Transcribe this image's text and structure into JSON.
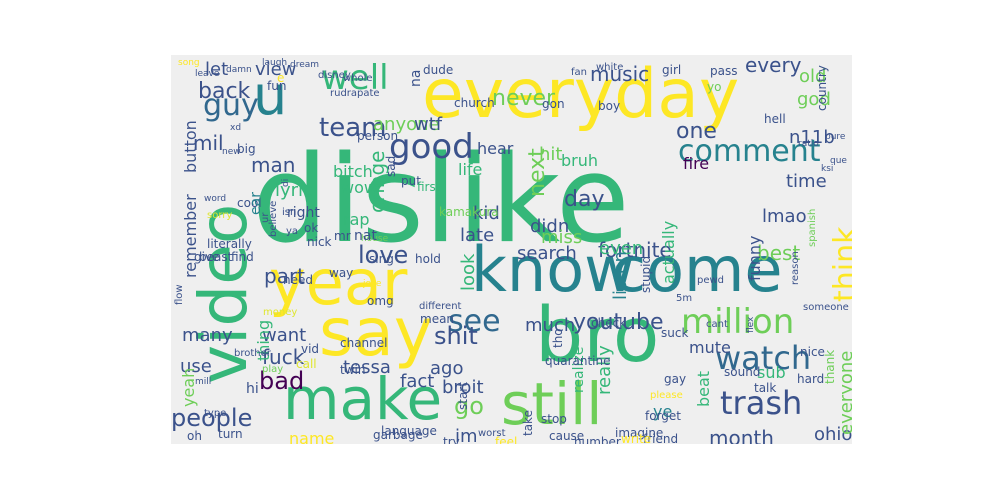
{
  "wordcloud": {
    "colors": {
      "purple": "#440154",
      "indigo": "#3b528b",
      "blue": "#31688e",
      "teal": "#26828e",
      "green": "#35b779",
      "lime": "#6ece58",
      "yellow": "#c9dd1f",
      "bright": "#fde725",
      "pale": "#dfe62f"
    },
    "words": [
      {
        "text": "dislike"
      },
      {
        "text": "everyday"
      },
      {
        "text": "video"
      },
      {
        "text": "know"
      },
      {
        "text": "come"
      },
      {
        "text": "year"
      },
      {
        "text": "bro"
      },
      {
        "text": "say"
      },
      {
        "text": "make"
      },
      {
        "text": "still"
      },
      {
        "text": "u"
      },
      {
        "text": "well"
      },
      {
        "text": "guy"
      },
      {
        "text": "good"
      },
      {
        "text": "comment"
      },
      {
        "text": "million"
      },
      {
        "text": "watch"
      },
      {
        "text": "trash"
      },
      {
        "text": "think"
      },
      {
        "text": "team"
      },
      {
        "text": "back"
      },
      {
        "text": "see"
      },
      {
        "text": "bad"
      },
      {
        "text": "people"
      },
      {
        "text": "love"
      },
      {
        "text": "shit"
      },
      {
        "text": "youtube"
      },
      {
        "text": "go"
      },
      {
        "text": "month"
      },
      {
        "text": "never"
      },
      {
        "text": "music"
      },
      {
        "text": "every"
      },
      {
        "text": "one"
      },
      {
        "text": "n11b"
      },
      {
        "text": "old"
      },
      {
        "text": "god"
      },
      {
        "text": "fortnite"
      },
      {
        "text": "best"
      },
      {
        "text": "time"
      },
      {
        "text": "lmao"
      },
      {
        "text": "mil"
      },
      {
        "text": "man"
      },
      {
        "text": "lyric"
      },
      {
        "text": "cringe"
      },
      {
        "text": "view"
      },
      {
        "text": "let"
      },
      {
        "text": "anyone"
      },
      {
        "text": "wtf"
      },
      {
        "text": "next"
      },
      {
        "text": "day"
      },
      {
        "text": "kid"
      },
      {
        "text": "search"
      },
      {
        "text": "even"
      },
      {
        "text": "listen"
      },
      {
        "text": "fuck"
      },
      {
        "text": "part"
      },
      {
        "text": "wow"
      },
      {
        "text": "rap"
      },
      {
        "text": "look"
      },
      {
        "text": "didn"
      },
      {
        "text": "late"
      },
      {
        "text": "much"
      },
      {
        "text": "mute"
      },
      {
        "text": "sub"
      },
      {
        "text": "ohio"
      },
      {
        "text": "ago"
      },
      {
        "text": "tessa"
      },
      {
        "text": "broit"
      },
      {
        "text": "fact"
      },
      {
        "text": "im"
      },
      {
        "text": "really"
      },
      {
        "text": "beat"
      },
      {
        "text": "everyone"
      },
      {
        "text": "use"
      },
      {
        "text": "many"
      },
      {
        "text": "want"
      },
      {
        "text": "thing"
      },
      {
        "text": "remember"
      },
      {
        "text": "button"
      },
      {
        "text": "actually"
      },
      {
        "text": "funny"
      },
      {
        "text": "miss"
      },
      {
        "text": "hit"
      },
      {
        "text": "fire"
      },
      {
        "text": "bruh"
      },
      {
        "text": "hear"
      },
      {
        "text": "bitch"
      },
      {
        "text": "life"
      },
      {
        "text": "name"
      },
      {
        "text": "yeah"
      },
      {
        "text": "ye"
      },
      {
        "text": "realize"
      },
      {
        "text": "na"
      },
      {
        "text": "dude"
      },
      {
        "text": "girl"
      },
      {
        "text": "pass"
      },
      {
        "text": "fan"
      },
      {
        "text": "white"
      },
      {
        "text": "yo"
      },
      {
        "text": "church"
      },
      {
        "text": "boy"
      },
      {
        "text": "gon"
      },
      {
        "text": "hell"
      },
      {
        "text": "country"
      },
      {
        "text": "pure"
      },
      {
        "text": "ratio"
      },
      {
        "text": "que"
      },
      {
        "text": "ksi"
      },
      {
        "text": "spanish"
      },
      {
        "text": "reason"
      },
      {
        "text": "someone"
      },
      {
        "text": "nice"
      },
      {
        "text": "thank"
      },
      {
        "text": "hard"
      },
      {
        "text": "talk"
      },
      {
        "text": "sound"
      },
      {
        "text": "flex"
      },
      {
        "text": "cant"
      },
      {
        "text": "suck"
      },
      {
        "text": "5m"
      },
      {
        "text": "stupid"
      },
      {
        "text": "pewd"
      },
      {
        "text": "gay"
      },
      {
        "text": "please"
      },
      {
        "text": "forget"
      },
      {
        "text": "friend"
      },
      {
        "text": "imagine"
      },
      {
        "text": "write"
      },
      {
        "text": "number"
      },
      {
        "text": "stop"
      },
      {
        "text": "take"
      },
      {
        "text": "feel"
      },
      {
        "text": "cause"
      },
      {
        "text": "quarantine"
      },
      {
        "text": "tho"
      },
      {
        "text": "check"
      },
      {
        "text": "start"
      },
      {
        "text": "worst"
      },
      {
        "text": "try"
      },
      {
        "text": "garbage"
      },
      {
        "text": "language"
      },
      {
        "text": "type"
      },
      {
        "text": "turn"
      },
      {
        "text": "oh"
      },
      {
        "text": "hi"
      },
      {
        "text": "mill"
      },
      {
        "text": "play"
      },
      {
        "text": "brother"
      },
      {
        "text": "call"
      },
      {
        "text": "vid"
      },
      {
        "text": "channel"
      },
      {
        "text": "twin"
      },
      {
        "text": "mean"
      },
      {
        "text": "different"
      },
      {
        "text": "omg"
      },
      {
        "text": "joke"
      },
      {
        "text": "flow"
      },
      {
        "text": "money"
      },
      {
        "text": "give"
      },
      {
        "text": "find"
      },
      {
        "text": "way"
      },
      {
        "text": "hold"
      },
      {
        "text": "sing"
      },
      {
        "text": "house"
      },
      {
        "text": "need"
      },
      {
        "text": "nick"
      },
      {
        "text": "mr"
      },
      {
        "text": "ok"
      },
      {
        "text": "ya"
      },
      {
        "text": "isn"
      },
      {
        "text": "di"
      },
      {
        "text": "ur"
      },
      {
        "text": "sorry"
      },
      {
        "text": "word"
      },
      {
        "text": "believe"
      },
      {
        "text": "cool"
      },
      {
        "text": "literally"
      },
      {
        "text": "beast"
      },
      {
        "text": "ear"
      },
      {
        "text": "right"
      },
      {
        "text": "nat"
      },
      {
        "text": "kamakura"
      },
      {
        "text": "sad"
      },
      {
        "text": "person"
      },
      {
        "text": "put"
      },
      {
        "text": "first"
      },
      {
        "text": "fun"
      },
      {
        "text": "e"
      },
      {
        "text": "xd"
      },
      {
        "text": "new"
      },
      {
        "text": "big"
      },
      {
        "text": "song"
      },
      {
        "text": "damn"
      },
      {
        "text": "leave"
      },
      {
        "text": "laugh"
      },
      {
        "text": "dream"
      },
      {
        "text": "disney"
      },
      {
        "text": "whole"
      },
      {
        "text": "rudrapate"
      }
    ]
  }
}
